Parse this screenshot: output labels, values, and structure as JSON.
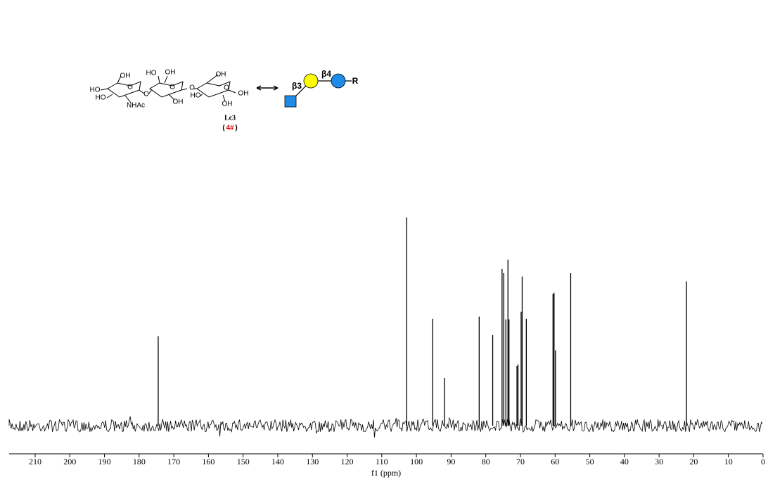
{
  "chart_data": {
    "type": "spectrum",
    "x_label": "f1 (ppm)",
    "x": [
      174.5,
      102.8,
      95.3,
      91.9,
      81.9,
      78.0,
      75.3,
      74.8,
      74.2,
      73.6,
      73.3,
      71.0,
      70.7,
      69.8,
      69.5,
      68.3,
      60.6,
      60.3,
      59.9,
      55.5,
      22.1
    ],
    "values": [
      127,
      296,
      152,
      68,
      155,
      129,
      223,
      217,
      151,
      236,
      151,
      85,
      87,
      162,
      212,
      152,
      187,
      189,
      107,
      217,
      205
    ],
    "color": "#000000",
    "xlim": [
      217.5,
      0
    ],
    "xticks": [
      210,
      200,
      190,
      180,
      170,
      160,
      150,
      140,
      130,
      120,
      110,
      100,
      90,
      80,
      70,
      60,
      50,
      40,
      30,
      20,
      10,
      0
    ],
    "ylim": [
      0,
      300
    ],
    "structure": {
      "atom_labels": [
        "OH",
        "HO",
        "HO",
        "O",
        "NHAc",
        "O",
        "HO",
        "OH",
        "O",
        "OH",
        "O",
        "OH",
        "HO",
        "O",
        "OH",
        "OH"
      ],
      "name": "Lc3",
      "compound_id": [
        "(",
        "4#",
        ")"
      ],
      "linkages": [
        "β3",
        "β4"
      ],
      "aglycone": "R"
    }
  }
}
